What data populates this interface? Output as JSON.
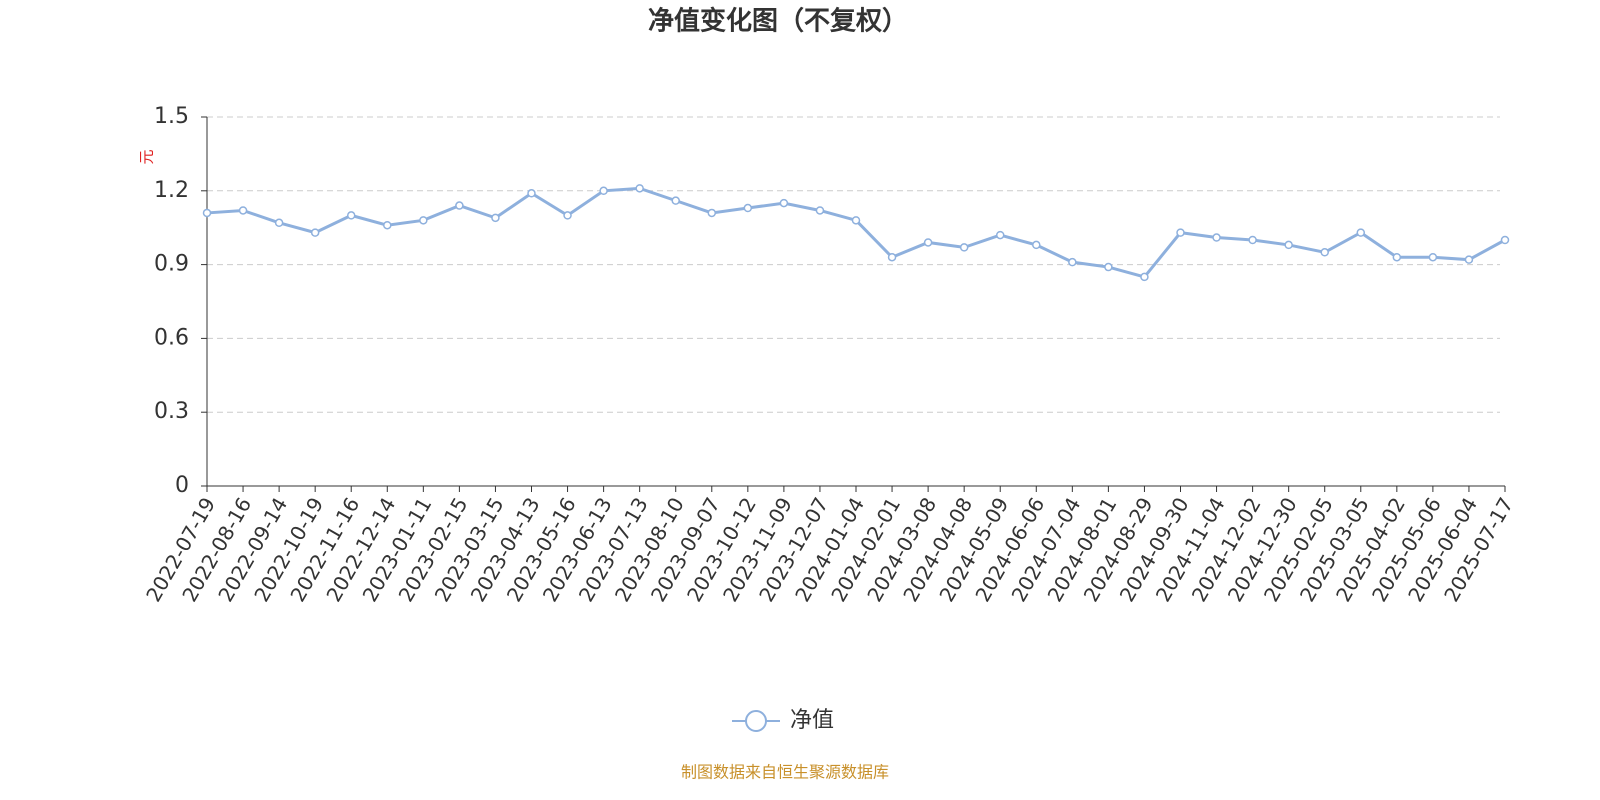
{
  "chart_data": {
    "type": "line",
    "title": "净值变化图（不复权）",
    "y_label": "元",
    "categories": [
      "2022-07-19",
      "2022-08-16",
      "2022-09-14",
      "2022-10-19",
      "2022-11-16",
      "2022-12-14",
      "2023-01-11",
      "2023-02-15",
      "2023-03-15",
      "2023-04-13",
      "2023-05-16",
      "2023-06-13",
      "2023-07-13",
      "2023-08-10",
      "2023-09-07",
      "2023-10-12",
      "2023-11-09",
      "2023-12-07",
      "2024-01-04",
      "2024-02-01",
      "2024-03-08",
      "2024-04-08",
      "2024-05-09",
      "2024-06-06",
      "2024-07-04",
      "2024-08-01",
      "2024-08-29",
      "2024-09-30",
      "2024-11-04",
      "2024-12-02",
      "2024-12-30",
      "2025-02-05",
      "2025-03-05",
      "2025-04-02",
      "2025-05-06",
      "2025-06-04",
      "2025-07-17"
    ],
    "series": [
      {
        "name": "净值",
        "color": "#8eb0dd",
        "values": [
          1.11,
          1.12,
          1.07,
          1.03,
          1.1,
          1.06,
          1.08,
          1.14,
          1.09,
          1.19,
          1.1,
          1.2,
          1.21,
          1.16,
          1.11,
          1.13,
          1.15,
          1.12,
          1.08,
          0.93,
          0.99,
          0.97,
          1.02,
          0.98,
          0.91,
          0.89,
          0.85,
          1.03,
          1.01,
          1.0,
          0.98,
          0.95,
          1.03,
          0.93,
          0.93,
          0.92,
          1.0
        ]
      }
    ],
    "ylim": [
      0,
      1.5
    ],
    "yticks": [
      0,
      0.3,
      0.6,
      0.9,
      1.2,
      1.5
    ],
    "grid": true,
    "footer": "制图数据来自恒生聚源数据库"
  }
}
